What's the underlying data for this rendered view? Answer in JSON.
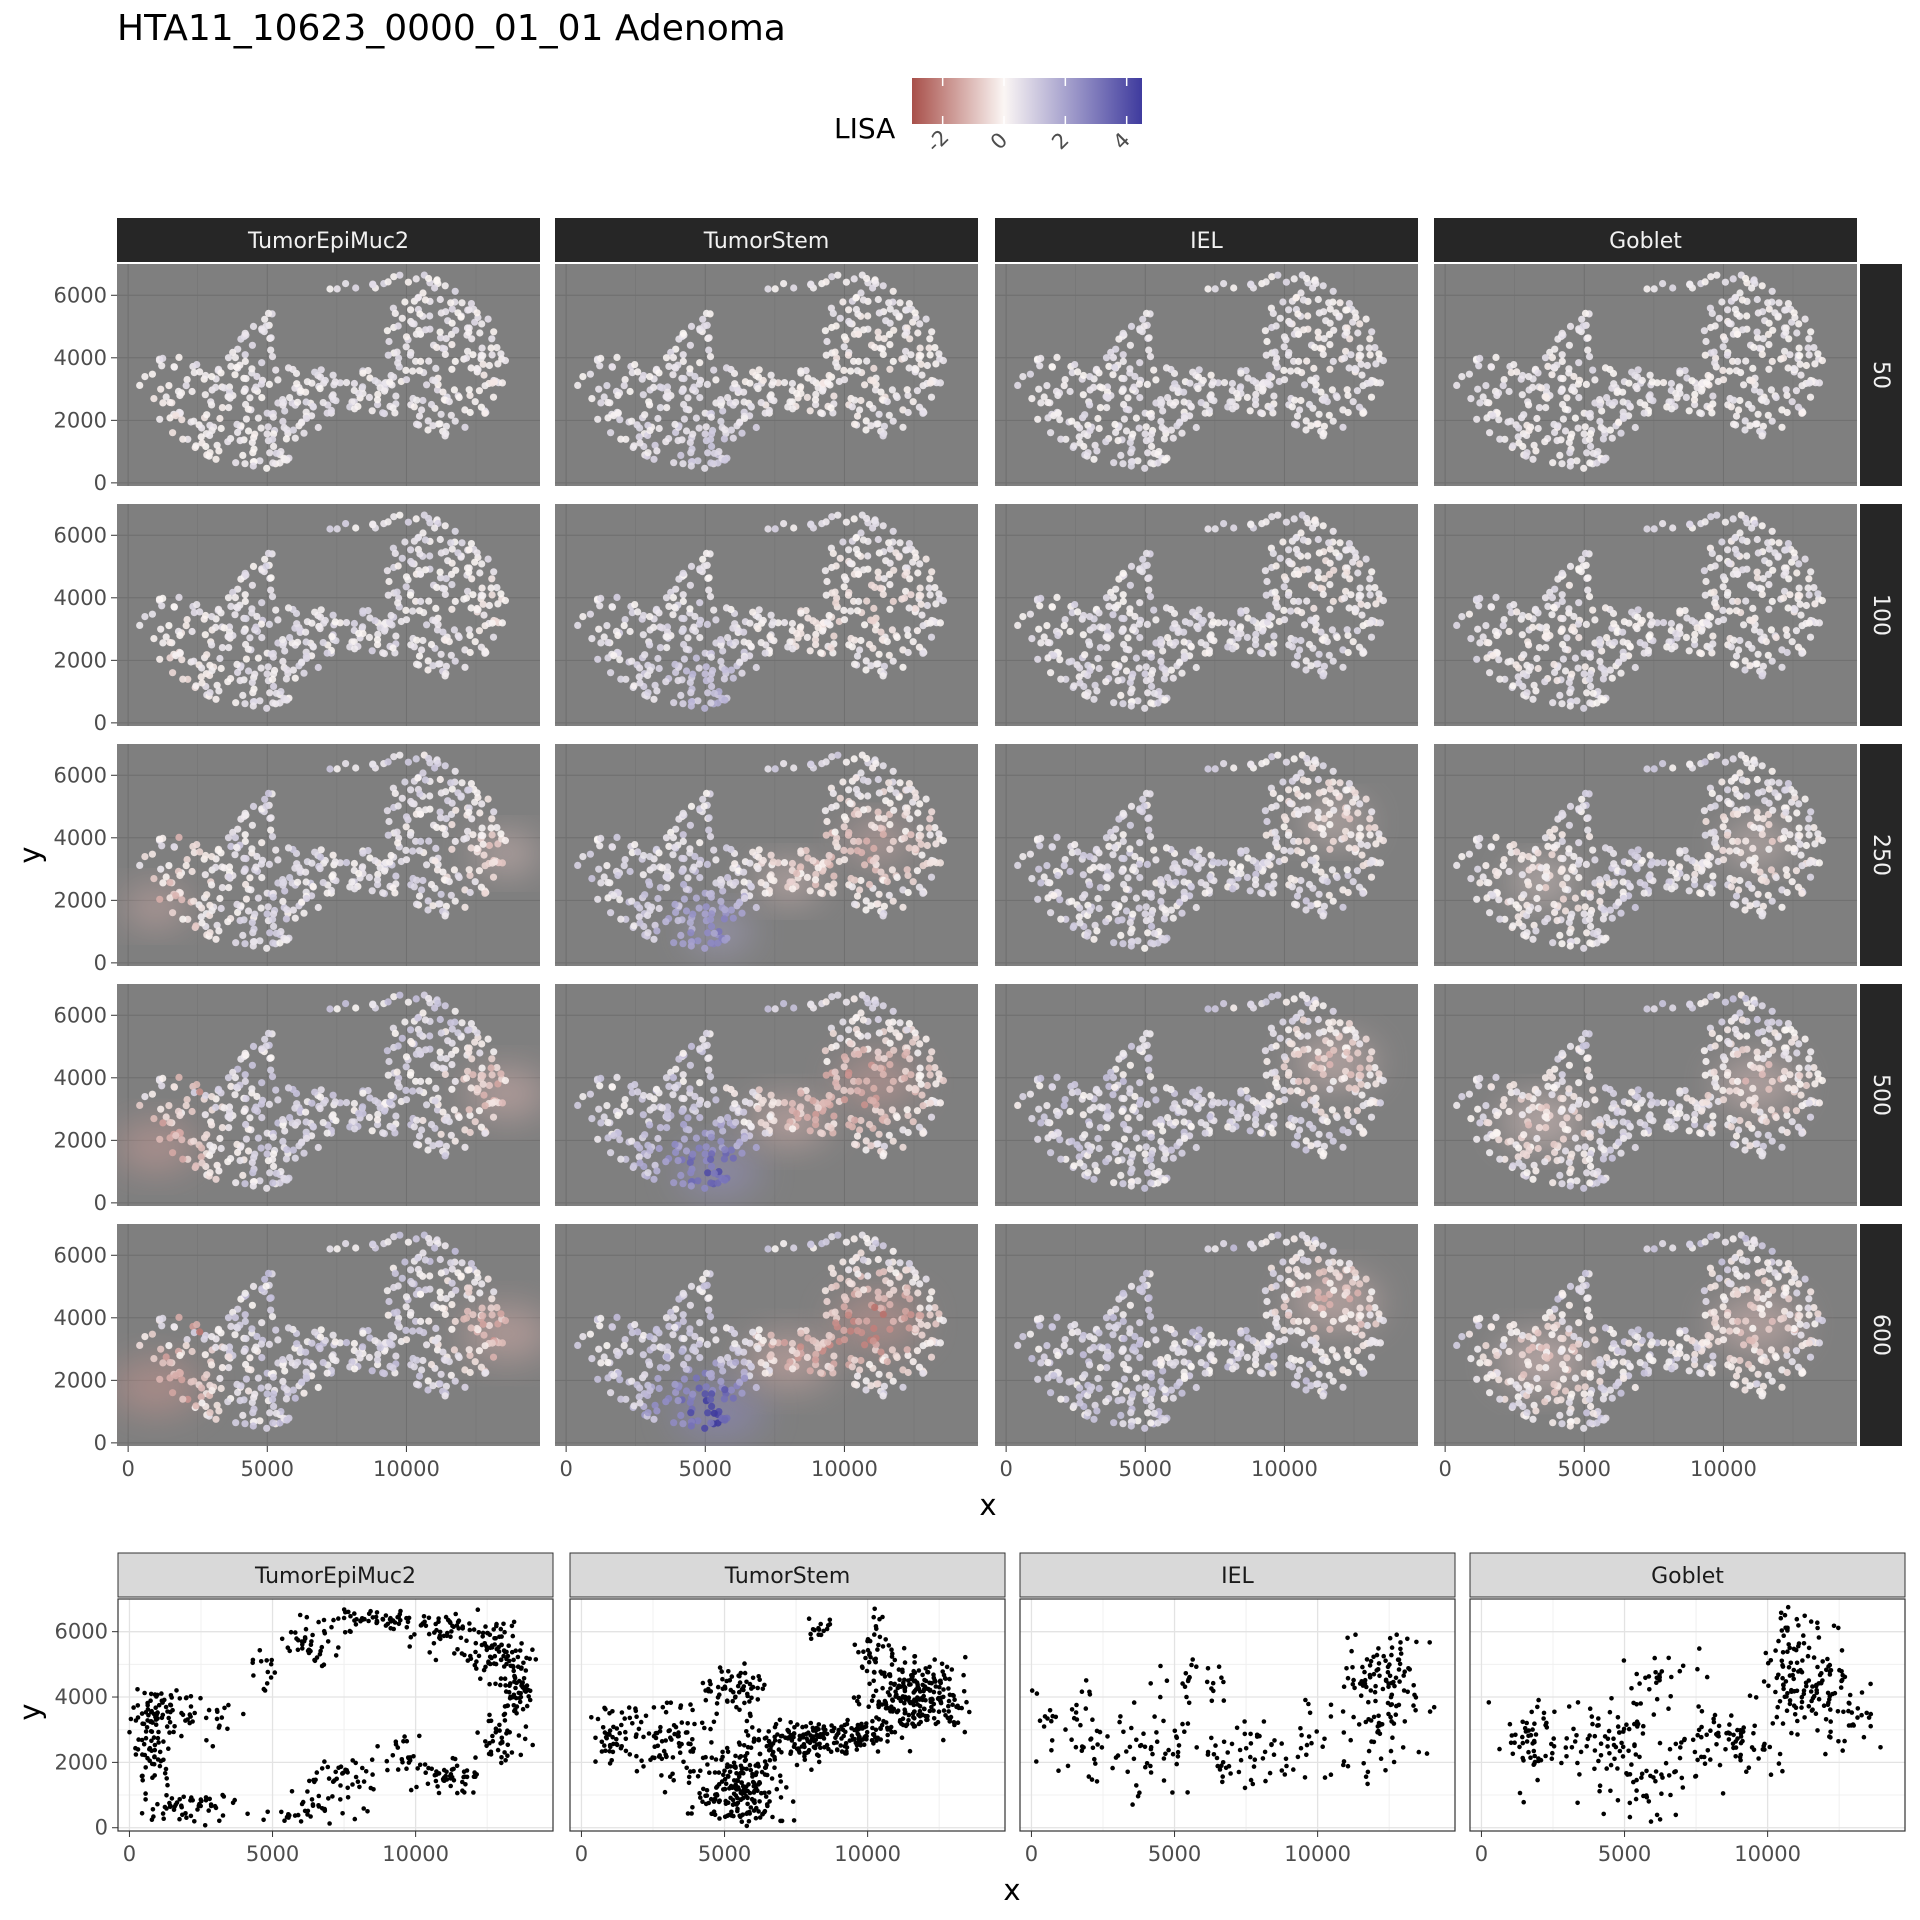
{
  "title": "HTA11_10623_0000_01_01 Adenoma",
  "legend": {
    "title": "LISA",
    "ticks": [
      "-2",
      "0",
      "2",
      "4"
    ],
    "range": [
      -3,
      4.5
    ],
    "colors": {
      "low": "#a8504a",
      "mid": "#fbf6f4",
      "high": "#3f3b9e"
    }
  },
  "facet_cols": [
    "TumorEpiMuc2",
    "TumorStem",
    "IEL",
    "Goblet"
  ],
  "facet_rows": [
    "50",
    "100",
    "250",
    "500",
    "600"
  ],
  "top_axes": {
    "xlabel": "x",
    "ylabel": "y",
    "xticks": [
      "0",
      "5000",
      "10000"
    ],
    "yticks": [
      "0",
      "2000",
      "4000",
      "6000"
    ]
  },
  "bottom_axes": {
    "xlabel": "x",
    "ylabel": "y",
    "xticks": [
      "0",
      "5000",
      "10000"
    ],
    "yticks": [
      "0",
      "2000",
      "4000",
      "6000"
    ]
  },
  "chart_data": [
    {
      "type": "scatter",
      "title": "HTA11_10623_0000_01_01 Adenoma",
      "facet_cols": [
        "TumorEpiMuc2",
        "TumorStem",
        "IEL",
        "Goblet"
      ],
      "facet_rows": [
        "50",
        "100",
        "250",
        "500",
        "600"
      ],
      "xlabel": "x",
      "ylabel": "y",
      "xlim": [
        -400,
        14800
      ],
      "ylim": [
        -100,
        7000
      ],
      "color_variable": "LISA",
      "color_range": [
        -3,
        4.5
      ],
      "panel_background": "#7f7f7f",
      "grid": true,
      "legend_position": "top",
      "tissue_outline_xy": [
        [
          400,
          3100
        ],
        [
          900,
          3900
        ],
        [
          1700,
          4100
        ],
        [
          2500,
          3800
        ],
        [
          2900,
          3500
        ],
        [
          3400,
          4000
        ],
        [
          4200,
          4800
        ],
        [
          4800,
          5400
        ],
        [
          5700,
          5700
        ],
        [
          6600,
          6200
        ],
        [
          7800,
          6400
        ],
        [
          9200,
          6600
        ],
        [
          10400,
          6700
        ],
        [
          11300,
          6500
        ],
        [
          12000,
          6200
        ],
        [
          12600,
          5700
        ],
        [
          13200,
          5000
        ],
        [
          13600,
          4300
        ],
        [
          13800,
          3600
        ],
        [
          13500,
          2800
        ],
        [
          12900,
          2200
        ],
        [
          12100,
          1700
        ],
        [
          11400,
          1400
        ],
        [
          10600,
          1700
        ],
        [
          9800,
          2100
        ],
        [
          8600,
          2300
        ],
        [
          7400,
          2100
        ],
        [
          6600,
          1500
        ],
        [
          5800,
          700
        ],
        [
          4900,
          350
        ],
        [
          3900,
          400
        ],
        [
          3000,
          700
        ],
        [
          2200,
          1100
        ],
        [
          1500,
          1600
        ],
        [
          900,
          2200
        ],
        [
          500,
          2700
        ]
      ],
      "inner_gap_xy": [
        [
          5200,
          6200
        ],
        [
          9300,
          6200
        ],
        [
          9300,
          3700
        ],
        [
          5200,
          3700
        ]
      ],
      "hotspots_lisa": [
        {
          "facet": "TumorEpiMuc2",
          "rows": "500-600",
          "x": 1000,
          "y": 1800,
          "lisa": -2
        },
        {
          "facet": "TumorEpiMuc2",
          "rows": "500-600",
          "x": 13600,
          "y": 3500,
          "lisa": -1.5
        },
        {
          "facet": "TumorStem",
          "rows": "250-600",
          "x": 5500,
          "y": 1000,
          "lisa": 3
        },
        {
          "facet": "TumorStem",
          "rows": "250-600",
          "x": 8000,
          "y": 2600,
          "lisa": -1.5
        },
        {
          "facet": "TumorStem",
          "rows": "250-600",
          "x": 11200,
          "y": 3900,
          "lisa": -2
        },
        {
          "facet": "IEL",
          "rows": "250-600",
          "x": 11800,
          "y": 4500,
          "lisa": -1.2
        },
        {
          "facet": "Goblet",
          "rows": "250-600",
          "x": 11200,
          "y": 3800,
          "lisa": -1.2
        },
        {
          "facet": "Goblet",
          "rows": "250-600",
          "x": 3500,
          "y": 2600,
          "lisa": -1
        }
      ]
    },
    {
      "type": "scatter",
      "facets": [
        "TumorEpiMuc2",
        "TumorStem",
        "IEL",
        "Goblet"
      ],
      "xlabel": "x",
      "ylabel": "y",
      "xlim": [
        -400,
        14800
      ],
      "ylim": [
        -100,
        7000
      ],
      "point_color": "#000000",
      "grid": true,
      "clusters": {
        "TumorEpiMuc2": [
          {
            "x": 1000,
            "y": 3600,
            "sx": 600,
            "sy": 400,
            "n": 70
          },
          {
            "x": 800,
            "y": 2300,
            "sx": 350,
            "sy": 700,
            "n": 60
          },
          {
            "x": 2000,
            "y": 700,
            "sx": 700,
            "sy": 250,
            "n": 50
          },
          {
            "x": 5500,
            "y": 300,
            "sx": 400,
            "sy": 120,
            "n": 12
          },
          {
            "x": 6600,
            "y": 600,
            "sx": 500,
            "sy": 300,
            "n": 25
          },
          {
            "x": 7500,
            "y": 1500,
            "sx": 700,
            "sy": 400,
            "n": 40
          },
          {
            "x": 6300,
            "y": 5600,
            "sx": 500,
            "sy": 350,
            "n": 40
          },
          {
            "x": 8700,
            "y": 6400,
            "sx": 900,
            "sy": 120,
            "n": 50
          },
          {
            "x": 10800,
            "y": 6100,
            "sx": 600,
            "sy": 200,
            "n": 40
          },
          {
            "x": 12600,
            "y": 5500,
            "sx": 600,
            "sy": 450,
            "n": 80
          },
          {
            "x": 13600,
            "y": 4200,
            "sx": 250,
            "sy": 700,
            "n": 70
          },
          {
            "x": 13000,
            "y": 2700,
            "sx": 500,
            "sy": 400,
            "n": 40
          },
          {
            "x": 11200,
            "y": 1600,
            "sx": 600,
            "sy": 250,
            "n": 45
          },
          {
            "x": 9600,
            "y": 2200,
            "sx": 350,
            "sy": 300,
            "n": 25
          },
          {
            "x": 4700,
            "y": 4700,
            "sx": 400,
            "sy": 500,
            "n": 15
          },
          {
            "x": 2900,
            "y": 3500,
            "sx": 300,
            "sy": 500,
            "n": 12
          }
        ],
        "TumorStem": [
          {
            "x": 1200,
            "y": 2900,
            "sx": 800,
            "sy": 400,
            "n": 60
          },
          {
            "x": 3200,
            "y": 2600,
            "sx": 700,
            "sy": 600,
            "n": 80
          },
          {
            "x": 5300,
            "y": 4300,
            "sx": 500,
            "sy": 400,
            "n": 60
          },
          {
            "x": 5500,
            "y": 1200,
            "sx": 700,
            "sy": 700,
            "n": 220
          },
          {
            "x": 7800,
            "y": 2700,
            "sx": 1000,
            "sy": 300,
            "n": 150
          },
          {
            "x": 10000,
            "y": 2900,
            "sx": 500,
            "sy": 250,
            "n": 60
          },
          {
            "x": 10300,
            "y": 5300,
            "sx": 300,
            "sy": 600,
            "n": 40
          },
          {
            "x": 11600,
            "y": 4100,
            "sx": 700,
            "sy": 600,
            "n": 200
          },
          {
            "x": 12700,
            "y": 3700,
            "sx": 400,
            "sy": 400,
            "n": 40
          },
          {
            "x": 8300,
            "y": 6100,
            "sx": 250,
            "sy": 120,
            "n": 15
          }
        ],
        "IEL": [
          {
            "x": 1500,
            "y": 2800,
            "sx": 900,
            "sy": 800,
            "n": 50
          },
          {
            "x": 4200,
            "y": 2300,
            "sx": 1000,
            "sy": 800,
            "n": 50
          },
          {
            "x": 5800,
            "y": 4700,
            "sx": 700,
            "sy": 400,
            "n": 25
          },
          {
            "x": 7500,
            "y": 2200,
            "sx": 1000,
            "sy": 500,
            "n": 50
          },
          {
            "x": 9800,
            "y": 2300,
            "sx": 600,
            "sy": 700,
            "n": 20
          },
          {
            "x": 12300,
            "y": 4500,
            "sx": 800,
            "sy": 700,
            "n": 100
          },
          {
            "x": 12300,
            "y": 2800,
            "sx": 700,
            "sy": 600,
            "n": 30
          }
        ],
        "Goblet": [
          {
            "x": 2000,
            "y": 2700,
            "sx": 900,
            "sy": 600,
            "n": 70
          },
          {
            "x": 4600,
            "y": 2800,
            "sx": 700,
            "sy": 700,
            "n": 60
          },
          {
            "x": 5800,
            "y": 1200,
            "sx": 800,
            "sy": 700,
            "n": 40
          },
          {
            "x": 6300,
            "y": 4600,
            "sx": 700,
            "sy": 400,
            "n": 25
          },
          {
            "x": 8300,
            "y": 2800,
            "sx": 900,
            "sy": 500,
            "n": 60
          },
          {
            "x": 10700,
            "y": 5700,
            "sx": 400,
            "sy": 700,
            "n": 40
          },
          {
            "x": 11600,
            "y": 4200,
            "sx": 700,
            "sy": 700,
            "n": 110
          },
          {
            "x": 13000,
            "y": 3200,
            "sx": 600,
            "sy": 500,
            "n": 25
          },
          {
            "x": 9500,
            "y": 2100,
            "sx": 500,
            "sy": 500,
            "n": 20
          }
        ]
      }
    }
  ]
}
